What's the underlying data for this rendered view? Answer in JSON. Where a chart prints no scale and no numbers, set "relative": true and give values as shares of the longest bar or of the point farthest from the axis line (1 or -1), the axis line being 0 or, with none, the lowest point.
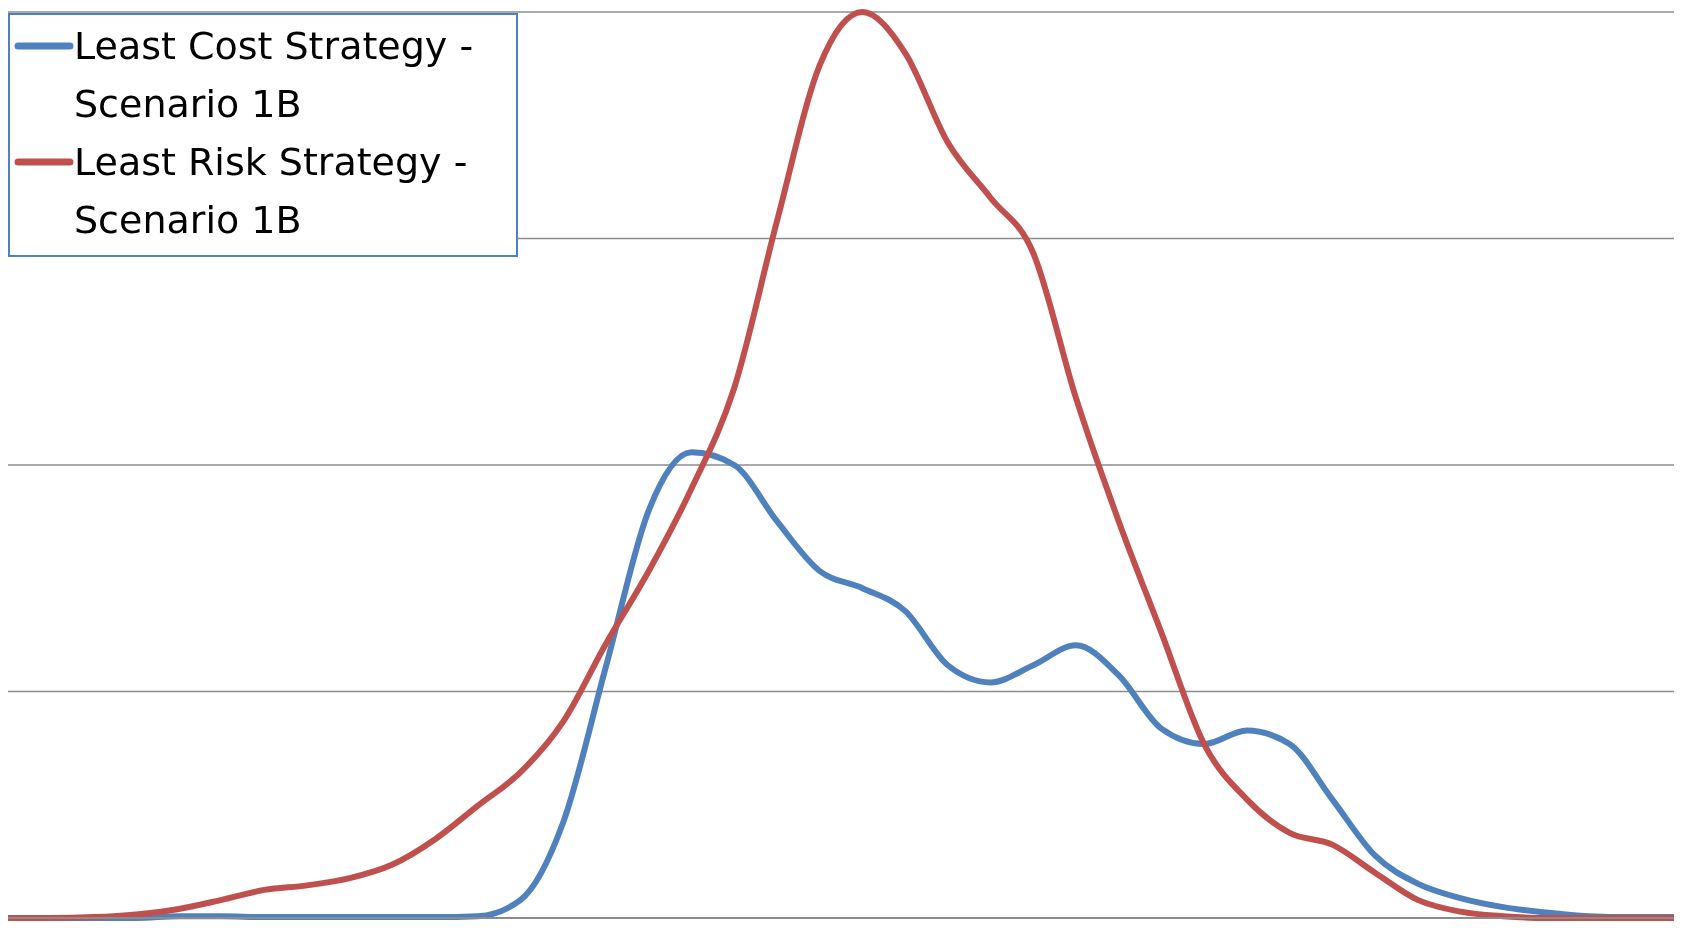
{
  "chart_data": {
    "type": "line",
    "relative": true,
    "grid": "y",
    "legend": "top left",
    "marker": "none",
    "line_style": "solid",
    "categories": [
      null,
      null,
      null,
      null,
      null,
      null,
      null,
      null,
      null,
      null,
      null,
      null,
      null,
      null,
      null,
      null,
      null,
      null,
      null,
      null,
      null,
      null,
      null,
      null,
      null,
      null,
      null,
      null,
      null,
      null,
      null,
      null,
      null,
      null,
      null,
      null,
      null,
      null,
      null,
      null
    ],
    "series": [
      {
        "name": "Least Cost Strategy - Scenario 1B",
        "color": "#4f81bd",
        "values": [
          0,
          0,
          0,
          0,
          0.002,
          0.002,
          0.001,
          0.001,
          0.001,
          0.001,
          0.001,
          0.002,
          0.02,
          0.106,
          0.278,
          0.45,
          0.514,
          0.5,
          0.438,
          0.383,
          0.364,
          0.339,
          0.279,
          0.26,
          0.279,
          0.301,
          0.268,
          0.209,
          0.192,
          0.207,
          0.192,
          0.131,
          0.069,
          0.038,
          0.022,
          0.012,
          0.006,
          0.002,
          0.001,
          0.001
        ]
      },
      {
        "name": "Least Risk Strategy - Scenario 1B",
        "color": "#c0504d",
        "values": [
          0,
          0,
          0.001,
          0.004,
          0.01,
          0.02,
          0.031,
          0.036,
          0.044,
          0.059,
          0.087,
          0.124,
          0.161,
          0.217,
          0.303,
          0.383,
          0.474,
          0.585,
          0.769,
          0.941,
          1,
          0.955,
          0.856,
          0.795,
          0.734,
          0.574,
          0.438,
          0.315,
          0.192,
          0.131,
          0.094,
          0.081,
          0.05,
          0.02,
          0.007,
          0.002,
          0,
          0,
          0,
          0
        ]
      }
    ]
  }
}
